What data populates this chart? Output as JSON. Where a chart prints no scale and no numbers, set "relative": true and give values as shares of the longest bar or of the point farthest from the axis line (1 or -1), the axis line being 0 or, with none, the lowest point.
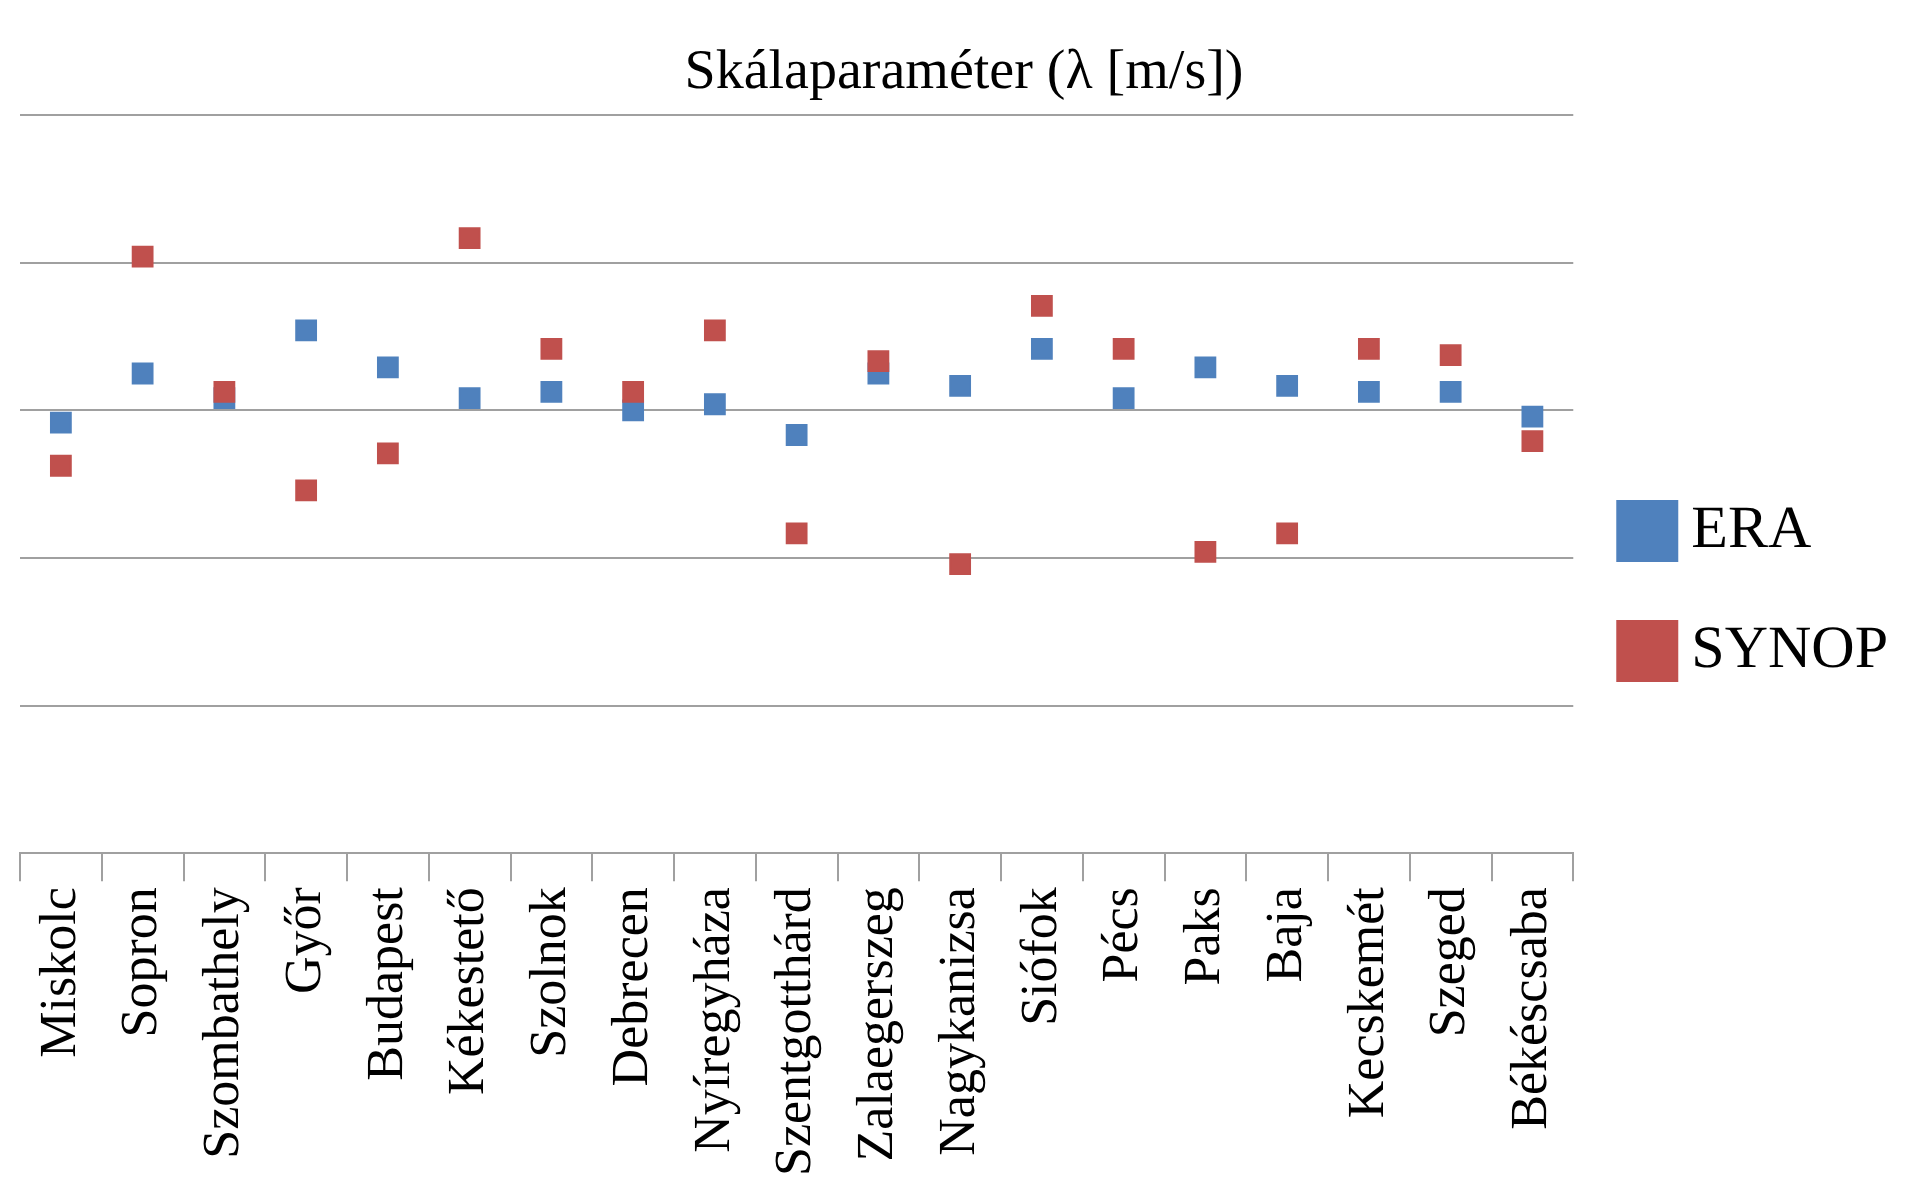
{
  "chart_data": {
    "type": "scatter",
    "title": "Skálaparaméter (λ [m/s])",
    "relative": true,
    "grid": "y",
    "legend": "right",
    "marker": "square",
    "categories": [
      "Miskolc",
      "Sopron",
      "Szombathely",
      "Győr",
      "Budapest",
      "Kékestető",
      "Szolnok",
      "Debrecen",
      "Nyíregyháza",
      "Szentgotthárd",
      "Zalaegerszeg",
      "Nagykanizsa",
      "Siófok",
      "Pécs",
      "Paks",
      "Baja",
      "Kecskemét",
      "Szeged",
      "Békéscsaba"
    ],
    "series": [
      {
        "name": "ERA",
        "color": "#4f81bd",
        "values": [
          0.7,
          0.78,
          0.74,
          0.85,
          0.79,
          0.74,
          0.75,
          0.72,
          0.73,
          0.68,
          0.78,
          0.76,
          0.82,
          0.74,
          0.79,
          0.76,
          0.75,
          0.75,
          0.71
        ]
      },
      {
        "name": "SYNOP",
        "color": "#c0504d",
        "values": [
          0.63,
          0.97,
          0.75,
          0.59,
          0.65,
          1,
          0.82,
          0.75,
          0.85,
          0.52,
          0.8,
          0.47,
          0.89,
          0.82,
          0.49,
          0.52,
          0.82,
          0.81,
          0.67
        ]
      }
    ]
  }
}
